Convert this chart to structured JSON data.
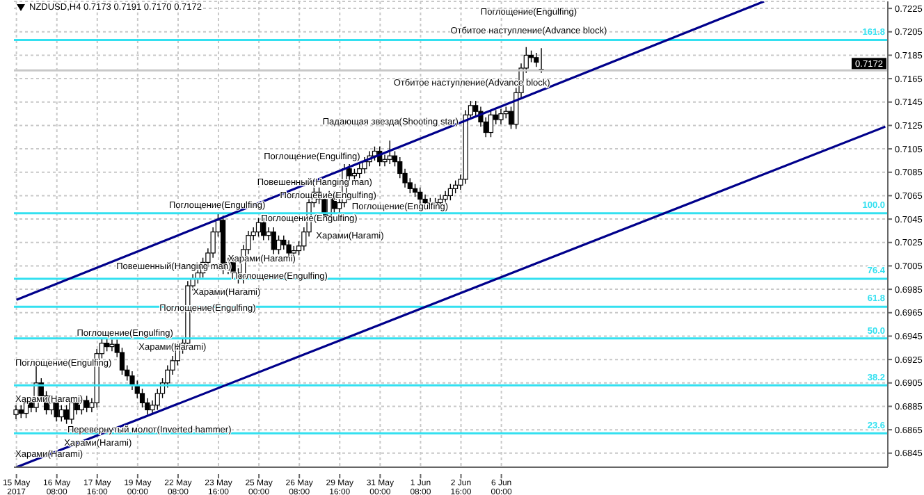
{
  "chart_data": {
    "type": "candlestick",
    "title": "NZDUSD,H4  0.7173 0.7191 0.7170 0.7172",
    "color": "#000000",
    "categories": [
      "15 May 2017",
      null,
      null,
      null,
      null,
      null,
      null,
      null,
      "16 May 08:00",
      null,
      null,
      null,
      null,
      null,
      null,
      null,
      "17 May 16:00",
      null,
      null,
      null,
      null,
      null,
      null,
      null,
      "19 May 00:00",
      null,
      null,
      null,
      null,
      null,
      null,
      null,
      "22 May 08:00",
      null,
      null,
      null,
      null,
      null,
      null,
      null,
      "23 May 16:00",
      null,
      null,
      null,
      null,
      null,
      null,
      null,
      "25 May 00:00",
      null,
      null,
      null,
      null,
      null,
      null,
      null,
      "26 May 08:00",
      null,
      null,
      null,
      null,
      null,
      null,
      null,
      "29 May 16:00",
      null,
      null,
      null,
      null,
      null,
      null,
      null,
      "31 May 00:00",
      null,
      null,
      null,
      null,
      null,
      null,
      null,
      "1 Jun 08:00",
      null,
      null,
      null,
      null,
      null,
      null,
      null,
      "2 Jun 16:00",
      null,
      null,
      null,
      null,
      null,
      null,
      null,
      "6 Jun 00:00",
      null,
      null,
      null,
      null,
      null,
      null,
      null,
      null,
      null,
      null,
      null,
      null,
      null,
      null,
      null,
      null,
      null,
      null,
      null,
      null,
      null,
      null,
      null,
      null,
      null,
      null,
      null,
      null,
      null,
      null,
      null,
      null,
      null,
      null,
      null,
      null,
      null,
      null,
      null,
      null,
      null,
      null,
      null,
      null,
      null,
      null,
      null,
      null,
      null,
      null,
      null,
      null,
      null,
      null,
      null,
      null,
      null,
      null,
      null,
      null,
      null,
      null,
      null,
      null,
      null,
      null,
      null,
      null,
      null,
      null,
      null,
      null,
      null,
      null,
      null,
      null
    ],
    "ohlc": [
      [
        0.6878,
        0.6886,
        0.6874,
        0.6882
      ],
      [
        0.6882,
        0.6886,
        0.6875,
        0.6879
      ],
      [
        0.6879,
        0.6892,
        0.6875,
        0.6888
      ],
      [
        0.6888,
        0.6892,
        0.688,
        0.6884
      ],
      [
        0.6884,
        0.692,
        0.688,
        0.6905
      ],
      [
        0.6905,
        0.6909,
        0.689,
        0.6894
      ],
      [
        0.6894,
        0.6898,
        0.6878,
        0.6882
      ],
      [
        0.6882,
        0.6892,
        0.6878,
        0.6888
      ],
      [
        0.6888,
        0.6892,
        0.6872,
        0.6876
      ],
      [
        0.6876,
        0.6886,
        0.6872,
        0.6882
      ],
      [
        0.6882,
        0.6886,
        0.687,
        0.6874
      ],
      [
        0.6874,
        0.6892,
        0.687,
        0.6888
      ],
      [
        0.6888,
        0.6892,
        0.6878,
        0.6882
      ],
      [
        0.6882,
        0.6894,
        0.6878,
        0.689
      ],
      [
        0.689,
        0.6894,
        0.688,
        0.6884
      ],
      [
        0.6884,
        0.6892,
        0.688,
        0.6888
      ],
      [
        0.6888,
        0.6934,
        0.6884,
        0.693
      ],
      [
        0.693,
        0.6943,
        0.6926,
        0.6939
      ],
      [
        0.6939,
        0.6943,
        0.6932,
        0.6936
      ],
      [
        0.6936,
        0.6942,
        0.6932,
        0.6938
      ],
      [
        0.6938,
        0.6942,
        0.6927,
        0.6931
      ],
      [
        0.6931,
        0.6935,
        0.6912,
        0.6916
      ],
      [
        0.6916,
        0.692,
        0.6907,
        0.6911
      ],
      [
        0.6911,
        0.6915,
        0.6899,
        0.6903
      ],
      [
        0.6903,
        0.6907,
        0.6892,
        0.6896
      ],
      [
        0.6896,
        0.69,
        0.6884,
        0.6888
      ],
      [
        0.6888,
        0.6892,
        0.6878,
        0.6882
      ],
      [
        0.6882,
        0.689,
        0.6878,
        0.6886
      ],
      [
        0.6886,
        0.69,
        0.6882,
        0.6896
      ],
      [
        0.6896,
        0.6909,
        0.6892,
        0.6905
      ],
      [
        0.6905,
        0.692,
        0.6901,
        0.6916
      ],
      [
        0.6916,
        0.6928,
        0.6912,
        0.6924
      ],
      [
        0.6924,
        0.6938,
        0.692,
        0.6934
      ],
      [
        0.6934,
        0.6943,
        0.693,
        0.6939
      ],
      [
        0.6939,
        0.6992,
        0.6935,
        0.6988
      ],
      [
        0.6988,
        0.6998,
        0.6984,
        0.6994
      ],
      [
        0.6994,
        0.7003,
        0.699,
        0.6999
      ],
      [
        0.6999,
        0.7012,
        0.6995,
        0.7008
      ],
      [
        0.7008,
        0.702,
        0.7004,
        0.7016
      ],
      [
        0.7016,
        0.7038,
        0.7012,
        0.7034
      ],
      [
        0.7034,
        0.705,
        0.703,
        0.7044
      ],
      [
        0.7044,
        0.7048,
        0.6998,
        0.7002
      ],
      [
        0.7002,
        0.7012,
        0.6998,
        0.7008
      ],
      [
        0.7008,
        0.7012,
        0.6995,
        0.6999
      ],
      [
        0.6999,
        0.7003,
        0.699,
        0.6994
      ],
      [
        0.6994,
        0.7023,
        0.699,
        0.7019
      ],
      [
        0.7019,
        0.7035,
        0.7015,
        0.7031
      ],
      [
        0.7031,
        0.7038,
        0.7027,
        0.7034
      ],
      [
        0.7034,
        0.7046,
        0.703,
        0.7042
      ],
      [
        0.7042,
        0.7046,
        0.7027,
        0.7031
      ],
      [
        0.7031,
        0.7038,
        0.7027,
        0.7034
      ],
      [
        0.7034,
        0.7038,
        0.7015,
        0.7019
      ],
      [
        0.7019,
        0.7031,
        0.7015,
        0.7027
      ],
      [
        0.7027,
        0.7031,
        0.7019,
        0.7023
      ],
      [
        0.7023,
        0.7027,
        0.7012,
        0.7016
      ],
      [
        0.7016,
        0.7022,
        0.7012,
        0.7018
      ],
      [
        0.7018,
        0.7026,
        0.7014,
        0.7022
      ],
      [
        0.7022,
        0.7038,
        0.7018,
        0.7034
      ],
      [
        0.7034,
        0.7063,
        0.703,
        0.7059
      ],
      [
        0.7059,
        0.7072,
        0.7055,
        0.7068
      ],
      [
        0.7068,
        0.7072,
        0.7058,
        0.7062
      ],
      [
        0.7062,
        0.7066,
        0.7044,
        0.7048
      ],
      [
        0.7048,
        0.7069,
        0.7044,
        0.7065
      ],
      [
        0.7065,
        0.7069,
        0.705,
        0.7054
      ],
      [
        0.7054,
        0.7063,
        0.705,
        0.7059
      ],
      [
        0.7059,
        0.7092,
        0.7055,
        0.7088
      ],
      [
        0.7088,
        0.7092,
        0.7078,
        0.7082
      ],
      [
        0.7082,
        0.7088,
        0.7078,
        0.7084
      ],
      [
        0.7084,
        0.7092,
        0.708,
        0.7088
      ],
      [
        0.7088,
        0.7098,
        0.7084,
        0.7094
      ],
      [
        0.7094,
        0.7103,
        0.709,
        0.7099
      ],
      [
        0.7099,
        0.7107,
        0.7095,
        0.7103
      ],
      [
        0.7103,
        0.7107,
        0.709,
        0.7094
      ],
      [
        0.7094,
        0.71,
        0.709,
        0.7096
      ],
      [
        0.7096,
        0.7112,
        0.7092,
        0.7099
      ],
      [
        0.7099,
        0.7103,
        0.709,
        0.7094
      ],
      [
        0.7094,
        0.7098,
        0.708,
        0.7084
      ],
      [
        0.7084,
        0.7088,
        0.7072,
        0.7076
      ],
      [
        0.7076,
        0.708,
        0.7067,
        0.7071
      ],
      [
        0.7071,
        0.7075,
        0.7064,
        0.7068
      ],
      [
        0.7068,
        0.7072,
        0.7058,
        0.7062
      ],
      [
        0.7062,
        0.7066,
        0.7055,
        0.7059
      ],
      [
        0.7059,
        0.7063,
        0.7053,
        0.7057
      ],
      [
        0.7057,
        0.7063,
        0.7053,
        0.7059
      ],
      [
        0.7059,
        0.7066,
        0.7055,
        0.7062
      ],
      [
        0.7062,
        0.7069,
        0.7058,
        0.7065
      ],
      [
        0.7065,
        0.7075,
        0.7061,
        0.7071
      ],
      [
        0.7071,
        0.7078,
        0.7067,
        0.7074
      ],
      [
        0.7074,
        0.7083,
        0.707,
        0.7079
      ],
      [
        0.7079,
        0.7138,
        0.7075,
        0.7134
      ],
      [
        0.7134,
        0.7146,
        0.713,
        0.7142
      ],
      [
        0.7142,
        0.7146,
        0.7133,
        0.7137
      ],
      [
        0.7137,
        0.7141,
        0.7124,
        0.7128
      ],
      [
        0.7128,
        0.7132,
        0.7115,
        0.7119
      ],
      [
        0.7119,
        0.7138,
        0.7115,
        0.7134
      ],
      [
        0.7134,
        0.7138,
        0.7126,
        0.713
      ],
      [
        0.713,
        0.7139,
        0.7126,
        0.7135
      ],
      [
        0.7135,
        0.7141,
        0.7131,
        0.7137
      ],
      [
        0.7137,
        0.7141,
        0.7122,
        0.7126
      ],
      [
        0.7126,
        0.7157,
        0.7122,
        0.7153
      ],
      [
        0.7153,
        0.7178,
        0.7149,
        0.7174
      ],
      [
        0.7174,
        0.7192,
        0.717,
        0.7185
      ],
      [
        0.7185,
        0.7189,
        0.7179,
        0.7183
      ],
      [
        0.7183,
        0.7187,
        0.7175,
        0.7179
      ],
      [
        0.7173,
        0.7191,
        0.717,
        0.7172
      ],
      null,
      null,
      null,
      null,
      null,
      null,
      null,
      null,
      null,
      null,
      null,
      null,
      null,
      null,
      null,
      null,
      null,
      null,
      null,
      null,
      null,
      null,
      null,
      null,
      null,
      null,
      null,
      null,
      null,
      null,
      null,
      null,
      null,
      null,
      null,
      null,
      null,
      null,
      null,
      null,
      null,
      null,
      null,
      null,
      null,
      null,
      null,
      null,
      null,
      null,
      null,
      null,
      null,
      null,
      null,
      null,
      null,
      null,
      null,
      null,
      null,
      null,
      null,
      null,
      null,
      null,
      null,
      null
    ],
    "series": [
      {
        "type": "line",
        "color": "#00008b",
        "values": [
          0.6976,
          null,
          null,
          null,
          null,
          null,
          null,
          null,
          null,
          null,
          null,
          null,
          null,
          null,
          null,
          null,
          null,
          null,
          null,
          null,
          null,
          null,
          null,
          null,
          null,
          null,
          null,
          null,
          null,
          null,
          null,
          null,
          null,
          null,
          null,
          null,
          null,
          null,
          null,
          null,
          null,
          null,
          null,
          null,
          null,
          null,
          null,
          null,
          null,
          null,
          null,
          null,
          null,
          null,
          null,
          null,
          null,
          null,
          null,
          null,
          null,
          null,
          null,
          null,
          null,
          null,
          null,
          null,
          null,
          null,
          null,
          null,
          null,
          null,
          null,
          null,
          null,
          null,
          null,
          null,
          null,
          null,
          null,
          null,
          null,
          null,
          null,
          null,
          null,
          null,
          null,
          null,
          null,
          null,
          null,
          null,
          null,
          null,
          null,
          null,
          null,
          null,
          null,
          null,
          null,
          null,
          null,
          null,
          null,
          null,
          null,
          null,
          null,
          null,
          null,
          null,
          null,
          null,
          null,
          null,
          null,
          null,
          null,
          null,
          null,
          null,
          null,
          null,
          null,
          null,
          null,
          null,
          null,
          null,
          null,
          null,
          null,
          null,
          null,
          null,
          null,
          null,
          null,
          null,
          null,
          null,
          null,
          null,
          0.7231,
          null,
          null,
          null,
          null,
          null,
          null,
          null,
          null,
          null,
          null,
          null,
          null,
          null,
          null,
          null,
          null,
          null,
          null,
          null,
          null,
          null,
          null,
          null,
          null
        ]
      },
      {
        "type": "line",
        "color": "#00008b",
        "values": [
          0.6833,
          null,
          null,
          null,
          null,
          null,
          null,
          null,
          null,
          null,
          null,
          null,
          null,
          null,
          null,
          null,
          null,
          null,
          null,
          null,
          null,
          null,
          null,
          null,
          null,
          null,
          null,
          null,
          null,
          null,
          null,
          null,
          null,
          null,
          null,
          null,
          null,
          null,
          null,
          null,
          null,
          null,
          null,
          null,
          null,
          null,
          null,
          null,
          null,
          null,
          null,
          null,
          null,
          null,
          null,
          null,
          null,
          null,
          null,
          null,
          null,
          null,
          null,
          null,
          null,
          null,
          null,
          null,
          null,
          null,
          null,
          null,
          null,
          null,
          null,
          null,
          null,
          null,
          null,
          null,
          null,
          null,
          null,
          null,
          null,
          null,
          null,
          null,
          null,
          null,
          null,
          null,
          null,
          null,
          null,
          null,
          null,
          null,
          null,
          null,
          null,
          null,
          null,
          null,
          null,
          null,
          null,
          null,
          null,
          null,
          null,
          null,
          null,
          null,
          null,
          null,
          null,
          null,
          null,
          null,
          null,
          null,
          null,
          null,
          null,
          null,
          null,
          null,
          null,
          null,
          null,
          null,
          null,
          null,
          null,
          null,
          null,
          null,
          null,
          null,
          null,
          null,
          null,
          null,
          null,
          null,
          null,
          null,
          null,
          null,
          null,
          null,
          null,
          null,
          null,
          null,
          null,
          null,
          null,
          null,
          null,
          null,
          null,
          null,
          null,
          null,
          null,
          null,
          null,
          null,
          null,
          null,
          0.7124
        ]
      }
    ],
    "ylim": [
      0.6833,
      0.7231
    ],
    "yticks": [
      0.6845,
      0.6865,
      0.6885,
      0.6905,
      0.6925,
      0.6945,
      0.6965,
      0.6985,
      0.7005,
      0.7025,
      0.7045,
      0.7065,
      0.7085,
      0.7105,
      0.7125,
      0.7145,
      0.7165,
      0.7185,
      0.7205,
      0.7225
    ],
    "grid": true,
    "ref_lines": [
      {
        "axis": "y",
        "value": 0.7198,
        "color": "#33e0f0"
      },
      {
        "axis": "y",
        "value": 0.705,
        "color": "#33e0f0"
      },
      {
        "axis": "y",
        "value": 0.6994,
        "color": "#33e0f0"
      },
      {
        "axis": "y",
        "value": 0.697,
        "color": "#33e0f0"
      },
      {
        "axis": "y",
        "value": 0.6943,
        "color": "#33e0f0"
      },
      {
        "axis": "y",
        "value": 0.6903,
        "color": "#33e0f0"
      },
      {
        "axis": "y",
        "value": 0.6862,
        "color": "#33e0f0"
      },
      {
        "axis": "y",
        "value": 0.7172,
        "label": "0.7172",
        "color": "#c8c8c8"
      }
    ],
    "annotations": [
      "Поглощение(Engulfing)",
      "Отбитое наступление(Advance block)",
      "Отбитое наступление(Advance block)",
      "Падающая звезда(Shooting star)",
      "Поглощение(Engulfing)",
      "Повешенный(Hanging man)",
      "Поглощение(Engulfing)",
      "Поглощение(Engulfing)",
      "Харами(Harami)",
      "Поглощение(Engulfing)",
      "Поглощение(Engulfing)",
      "Харами(Harami)",
      "Повешенный(Hanging man)",
      "Поглощение(Engulfing)",
      "Харами(Harami)",
      "Поглощение(Engulfing)",
      "Поглощение(Engulfing)",
      "Харами(Harami)",
      "Поглощение(Engulfing)",
      "Перевернутый молот(Inverted hammer)",
      "Харами(Harami)",
      "Харами(Harami)",
      "Харами(Harami)",
      "161.8",
      "100.0",
      "76.4",
      "61.8",
      "50.0",
      "38.2",
      "23.6"
    ]
  }
}
